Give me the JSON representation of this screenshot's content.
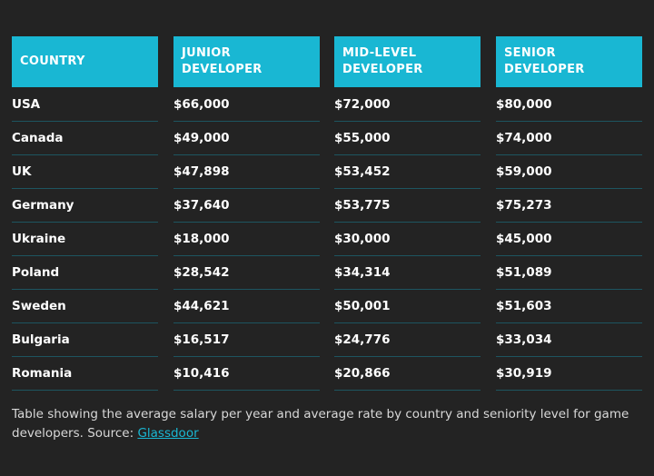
{
  "table": {
    "headers": [
      "COUNTRY",
      "JUNIOR DEVELOPER",
      "MID-LEVEL DEVELOPER",
      "SENIOR DEVELOPER"
    ],
    "rows": [
      [
        "USA",
        "$66,000",
        "$72,000",
        "$80,000"
      ],
      [
        "Canada",
        "$49,000",
        "$55,000",
        "$74,000"
      ],
      [
        "UK",
        "$47,898",
        "$53,452",
        "$59,000"
      ],
      [
        "Germany",
        "$37,640",
        "$53,775",
        "$75,273"
      ],
      [
        "Ukraine",
        "$18,000",
        "$30,000",
        "$45,000"
      ],
      [
        "Poland",
        "$28,542",
        "$34,314",
        "$51,089"
      ],
      [
        "Sweden",
        "$44,621",
        "$50,001",
        "$51,603"
      ],
      [
        "Bulgaria",
        "$16,517",
        "$24,776",
        "$33,034"
      ],
      [
        "Romania",
        "$10,416",
        "$20,866",
        "$30,919"
      ]
    ]
  },
  "caption": {
    "text": "Table showing the average salary per year and average rate by country and seniority level for game developers. Source: ",
    "link": "Glassdoor"
  }
}
